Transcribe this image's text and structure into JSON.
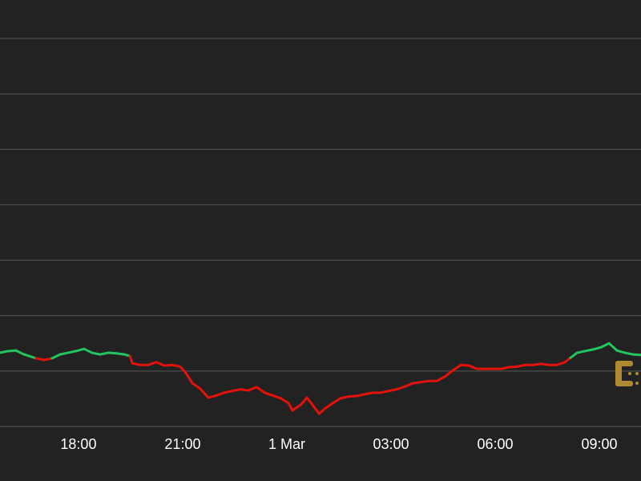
{
  "chart_data": {
    "type": "line",
    "x": [
      15.74,
      15.97,
      16.2,
      16.43,
      16.78,
      17.01,
      17.24,
      17.47,
      17.7,
      17.93,
      18.16,
      18.39,
      18.62,
      18.86,
      19.09,
      19.32,
      19.48,
      19.55,
      19.78,
      20.01,
      20.24,
      20.47,
      20.7,
      20.93,
      21.09,
      21.28,
      21.51,
      21.74,
      21.97,
      22.2,
      22.43,
      22.66,
      22.89,
      23.13,
      23.36,
      23.59,
      23.82,
      24.05,
      24.16,
      24.4,
      24.58,
      24.74,
      24.93,
      25.09,
      25.32,
      25.55,
      25.78,
      26.01,
      26.24,
      26.47,
      26.7,
      26.93,
      27.16,
      27.4,
      27.63,
      27.86,
      28.09,
      28.32,
      28.55,
      28.78,
      29.01,
      29.24,
      29.47,
      29.7,
      29.93,
      30.17,
      30.4,
      30.63,
      30.86,
      31.09,
      31.32,
      31.55,
      31.78,
      32.01,
      32.17,
      32.36,
      32.59,
      32.82,
      33.05,
      33.28,
      33.51,
      33.74,
      33.97,
      34.2
    ],
    "values": [
      1.33,
      1.36,
      1.37,
      1.3,
      1.23,
      1.2,
      1.23,
      1.3,
      1.33,
      1.36,
      1.4,
      1.33,
      1.3,
      1.33,
      1.32,
      1.3,
      1.27,
      1.14,
      1.11,
      1.11,
      1.16,
      1.1,
      1.11,
      1.08,
      0.97,
      0.78,
      0.68,
      0.52,
      0.56,
      0.61,
      0.64,
      0.67,
      0.65,
      0.71,
      0.61,
      0.56,
      0.51,
      0.42,
      0.29,
      0.39,
      0.52,
      0.39,
      0.23,
      0.32,
      0.42,
      0.51,
      0.54,
      0.55,
      0.58,
      0.61,
      0.61,
      0.64,
      0.67,
      0.72,
      0.78,
      0.8,
      0.82,
      0.82,
      0.9,
      1.01,
      1.11,
      1.1,
      1.04,
      1.04,
      1.04,
      1.04,
      1.07,
      1.08,
      1.11,
      1.11,
      1.13,
      1.11,
      1.11,
      1.16,
      1.24,
      1.33,
      1.36,
      1.39,
      1.43,
      1.5,
      1.37,
      1.33,
      1.3,
      1.29
    ],
    "baseline": 1.22,
    "up_color": "#22c55e",
    "down_color": "#e3120b",
    "xlim": [
      15.74,
      34.2
    ],
    "xticks": [
      {
        "value": 18,
        "label": "18:00"
      },
      {
        "value": 21,
        "label": "21:00"
      },
      {
        "value": 24,
        "label": "1 Mar"
      },
      {
        "value": 27,
        "label": "03:00"
      },
      {
        "value": 30,
        "label": "06:00"
      },
      {
        "value": 33,
        "label": "09:00"
      }
    ],
    "ylim": [
      0,
      7
    ],
    "yticks": [
      0,
      1,
      2,
      3,
      4,
      5,
      6,
      7
    ],
    "grid": true
  }
}
